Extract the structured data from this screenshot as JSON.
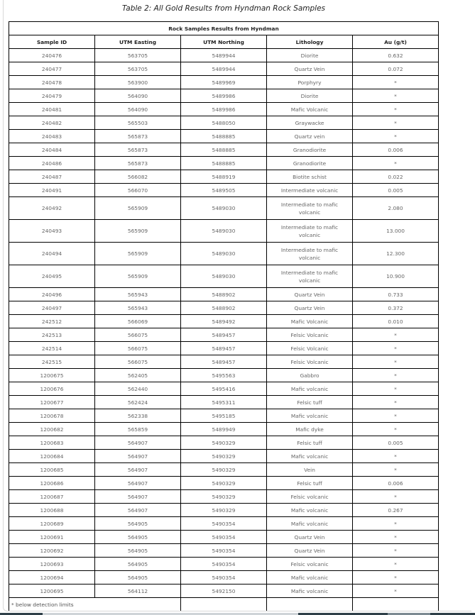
{
  "title": "Table 2: All Gold Results from Hyndman Rock Samples",
  "table": {
    "caption": "Rock Samples Results from Hyndman",
    "headers": [
      "Sample ID",
      "UTM Easting",
      "UTM Northing",
      "Lithology",
      "Au (g/t)"
    ],
    "rows": [
      [
        "240476",
        "563705",
        "5489944",
        "Diorite",
        "0.632"
      ],
      [
        "240477",
        "563705",
        "5489944",
        "Quartz Vein",
        "0.072"
      ],
      [
        "240478",
        "563900",
        "5489969",
        "Porphyry",
        "*"
      ],
      [
        "240479",
        "564090",
        "5489986",
        "Diorite",
        "*"
      ],
      [
        "240481",
        "564090",
        "5489986",
        "Mafic Volcanic",
        "*"
      ],
      [
        "240482",
        "565503",
        "5488050",
        "Graywacke",
        "*"
      ],
      [
        "240483",
        "565873",
        "5488885",
        "Quartz vein",
        "*"
      ],
      [
        "240484",
        "565873",
        "5488885",
        "Granodiorite",
        "0.006"
      ],
      [
        "240486",
        "565873",
        "5488885",
        "Granodiorite",
        "*"
      ],
      [
        "240487",
        "566082",
        "5488919",
        "Biotite schist",
        "0.022"
      ],
      [
        "240491",
        "566070",
        "5489505",
        "Intermediate volcanic",
        "0.005"
      ],
      [
        "240492",
        "565909",
        "5489030",
        "Intermediate to mafic volcanic",
        "2.080"
      ],
      [
        "240493",
        "565909",
        "5489030",
        "Intermediate to mafic volcanic",
        "13.000"
      ],
      [
        "240494",
        "565909",
        "5489030",
        "Intermediate to mafic volcanic",
        "12.300"
      ],
      [
        "240495",
        "565909",
        "5489030",
        "Intermediate to mafic volcanic",
        "10.900"
      ],
      [
        "240496",
        "565943",
        "5488902",
        "Quartz Vein",
        "0.733"
      ],
      [
        "240497",
        "565943",
        "5488902",
        "Quartz Vein",
        "0.372"
      ],
      [
        "242512",
        "566069",
        "5489492",
        "Mafic Volcanic",
        "0.010"
      ],
      [
        "242513",
        "566075",
        "5489457",
        "Felsic Volcanic",
        "*"
      ],
      [
        "242514",
        "566075",
        "5489457",
        "Felsic Volcanic",
        "*"
      ],
      [
        "242515",
        "566075",
        "5489457",
        "Felsic Volcanic",
        "*"
      ],
      [
        "1200675",
        "562405",
        "5495563",
        "Gabbro",
        "*"
      ],
      [
        "1200676",
        "562440",
        "5495416",
        "Mafic volcanic",
        "*"
      ],
      [
        "1200677",
        "562424",
        "5495311",
        "Felsic tuff",
        "*"
      ],
      [
        "1200678",
        "562338",
        "5495185",
        "Mafic volcanic",
        "*"
      ],
      [
        "1200682",
        "565859",
        "5489949",
        "Mafic dyke",
        "*"
      ],
      [
        "1200683",
        "564907",
        "5490329",
        "Felsic tuff",
        "0.005"
      ],
      [
        "1200684",
        "564907",
        "5490329",
        "Mafic volcanic",
        "*"
      ],
      [
        "1200685",
        "564907",
        "5490329",
        "Vein",
        "*"
      ],
      [
        "1200686",
        "564907",
        "5490329",
        "Felsic tuff",
        "0.006"
      ],
      [
        "1200687",
        "564907",
        "5490329",
        "Felsic volcanic",
        "*"
      ],
      [
        "1200688",
        "564907",
        "5490329",
        "Mafic volcanic",
        "0.267"
      ],
      [
        "1200689",
        "564905",
        "5490354",
        "Mafic volcanic",
        "*"
      ],
      [
        "1200691",
        "564905",
        "5490354",
        "Quartz Vein",
        "*"
      ],
      [
        "1200692",
        "564905",
        "5490354",
        "Quartz Vein",
        "*"
      ],
      [
        "1200693",
        "564905",
        "5490354",
        "Felsic volcanic",
        "*"
      ],
      [
        "1200694",
        "564905",
        "5490354",
        "Mafic volcanic",
        "*"
      ],
      [
        "1200695",
        "564112",
        "5492150",
        "Mafic volcanic",
        "*"
      ]
    ],
    "footnote": "* below detection limits"
  }
}
